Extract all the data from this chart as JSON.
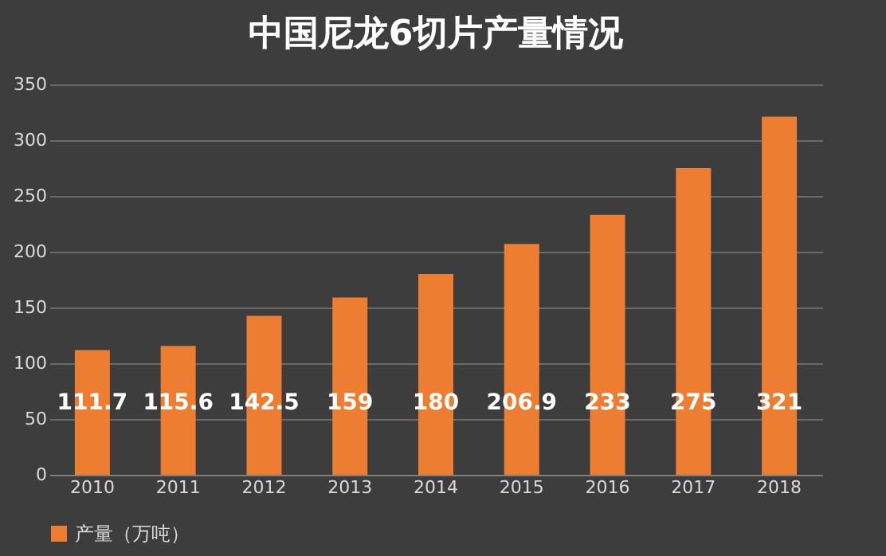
{
  "chart_data": {
    "type": "bar",
    "title": "中国尼龙6切片产量情况",
    "categories": [
      "2010",
      "2011",
      "2012",
      "2013",
      "2014",
      "2015",
      "2016",
      "2017",
      "2018"
    ],
    "series": [
      {
        "name": "产量（万吨）",
        "color": "#ed7d31",
        "values": [
          111.7,
          115.6,
          142.5,
          159,
          180,
          206.9,
          233,
          275,
          321
        ]
      }
    ],
    "ylim": [
      0,
      350
    ],
    "yticks": [
      0,
      50,
      100,
      150,
      200,
      250,
      300,
      350
    ],
    "grid": "y",
    "legend": "bottom",
    "data_labels": true
  }
}
